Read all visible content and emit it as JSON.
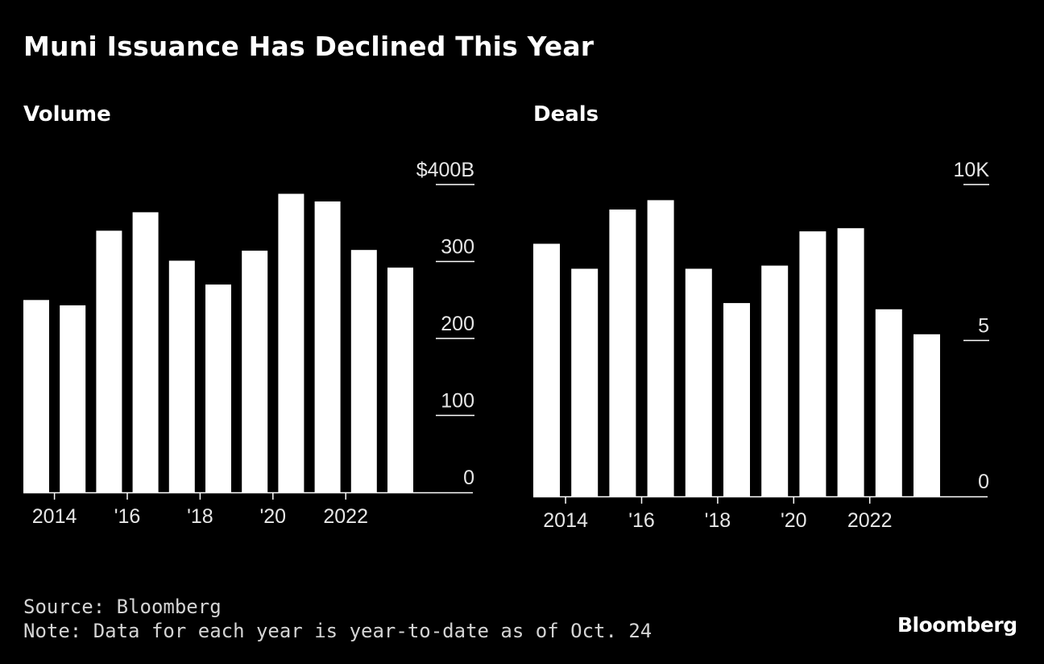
{
  "title": "Muni Issuance Has Declined This Year",
  "footer": {
    "source": "Source: Bloomberg",
    "note": "Note: Data for each year is year-to-date as of Oct. 24"
  },
  "logo_text": "Bloomberg",
  "colors": {
    "background": "#000000",
    "bar": "#ffffff",
    "text": "#ffffff",
    "axis": "#ffffff"
  },
  "chart_data": [
    {
      "type": "bar",
      "title": "Volume",
      "years": [
        2013,
        2014,
        2015,
        2016,
        2017,
        2018,
        2019,
        2020,
        2021,
        2022,
        2023
      ],
      "values": [
        250,
        243,
        340,
        364,
        301,
        270,
        314,
        388,
        378,
        315,
        292
      ],
      "ylim": [
        0,
        400
      ],
      "yticks": [
        {
          "value": 0,
          "label": "0"
        },
        {
          "value": 100,
          "label": "100"
        },
        {
          "value": 200,
          "label": "200"
        },
        {
          "value": 300,
          "label": "300"
        },
        {
          "value": 400,
          "label": "$400B"
        }
      ],
      "xticks": [
        {
          "year": 2014,
          "label": "2014"
        },
        {
          "year": 2016,
          "label": "'16"
        },
        {
          "year": 2018,
          "label": "'18"
        },
        {
          "year": 2020,
          "label": "'20"
        },
        {
          "year": 2022,
          "label": "2022"
        }
      ],
      "grid": false,
      "y_axis_position": "right"
    },
    {
      "type": "bar",
      "title": "Deals",
      "years": [
        2013,
        2014,
        2015,
        2016,
        2017,
        2018,
        2019,
        2020,
        2021,
        2022,
        2023
      ],
      "values": [
        8.1,
        7.3,
        9.2,
        9.5,
        7.3,
        6.2,
        7.4,
        8.5,
        8.6,
        6.0,
        5.2
      ],
      "ylim": [
        0,
        10
      ],
      "yticks": [
        {
          "value": 0,
          "label": "0"
        },
        {
          "value": 5,
          "label": "5"
        },
        {
          "value": 10,
          "label": "10K"
        }
      ],
      "xticks": [
        {
          "year": 2014,
          "label": "2014"
        },
        {
          "year": 2016,
          "label": "'16"
        },
        {
          "year": 2018,
          "label": "'18"
        },
        {
          "year": 2020,
          "label": "'20"
        },
        {
          "year": 2022,
          "label": "2022"
        }
      ],
      "grid": false,
      "y_axis_position": "right"
    }
  ]
}
